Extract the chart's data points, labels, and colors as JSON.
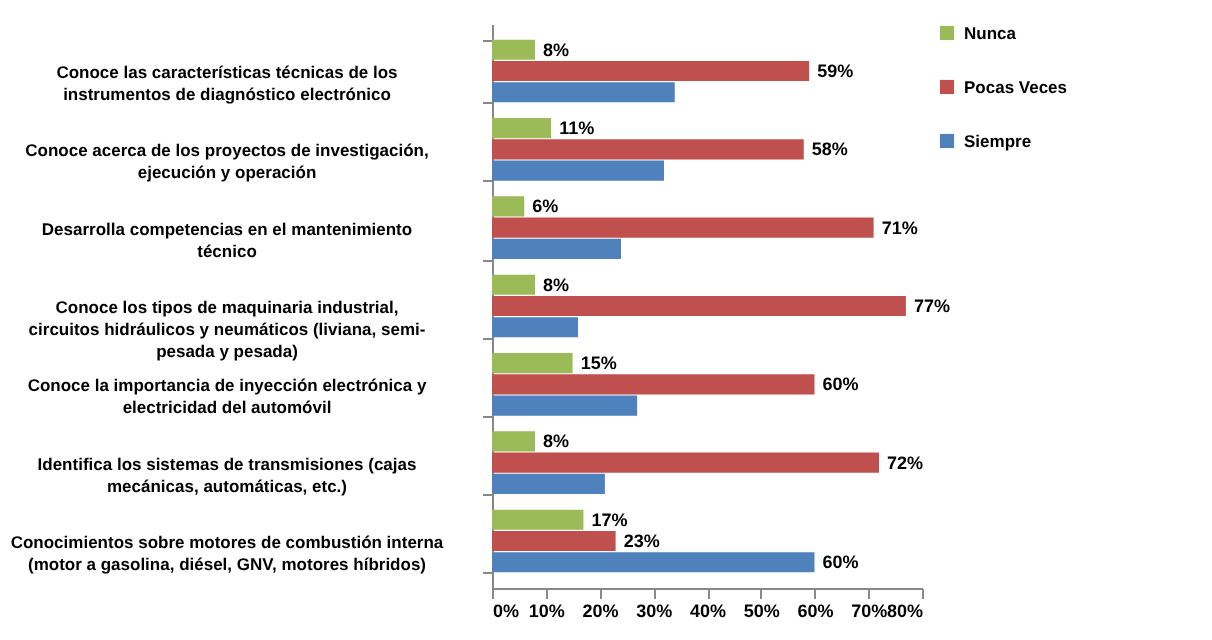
{
  "chart_data": {
    "type": "bar",
    "orientation": "horizontal",
    "categories": [
      "Conoce  las características técnicas de los instrumentos de diagnóstico electrónico",
      "Conoce acerca de los proyectos de investigación, ejecución y operación",
      "Desarrolla  competencias  en el mantenimiento técnico",
      "Conoce los tipos de maquinaria   industrial, circuitos hidráulicos y neumáticos (liviana, semi- pesada y pesada)",
      "Conoce la importancia de inyección electrónica y electricidad del automóvil",
      "Identifica los sistemas de transmisiones  (cajas mecánicas, automáticas, etc.)",
      "Conocimientos sobre motores de combustión interna (motor a gasolina, diésel, GNV, motores híbridos)"
    ],
    "series": [
      {
        "name": "Nunca",
        "color": "#9bbb59",
        "values": [
          8,
          11,
          6,
          8,
          15,
          8,
          17
        ],
        "value_labels": [
          "8%",
          "11%",
          "6%",
          "8%",
          "15%",
          "8%",
          "17%"
        ]
      },
      {
        "name": "Pocas Veces",
        "color": "#c0504d",
        "values": [
          59,
          58,
          71,
          77,
          60,
          72,
          23
        ],
        "value_labels": [
          "59%",
          "58%",
          "71%",
          "77%",
          "60%",
          "72%",
          "23%"
        ]
      },
      {
        "name": "Siempre",
        "color": "#4f81bd",
        "values": [
          34,
          32,
          24,
          16,
          27,
          21,
          60
        ],
        "value_labels": [
          null,
          null,
          null,
          null,
          null,
          null,
          "60%"
        ]
      }
    ],
    "xlim": [
      0,
      80
    ],
    "xticks": [
      {
        "value": 0,
        "label": "0%"
      },
      {
        "value": 10,
        "label": "10%"
      },
      {
        "value": 20,
        "label": "20%"
      },
      {
        "value": 30,
        "label": "30%"
      },
      {
        "value": 40,
        "label": "40%"
      },
      {
        "value": 50,
        "label": "50%"
      },
      {
        "value": 60,
        "label": "60%"
      },
      {
        "value": 70,
        "label": "70%"
      },
      {
        "value": 80,
        "label": "80%"
      }
    ],
    "grid": false,
    "legend": "right"
  }
}
